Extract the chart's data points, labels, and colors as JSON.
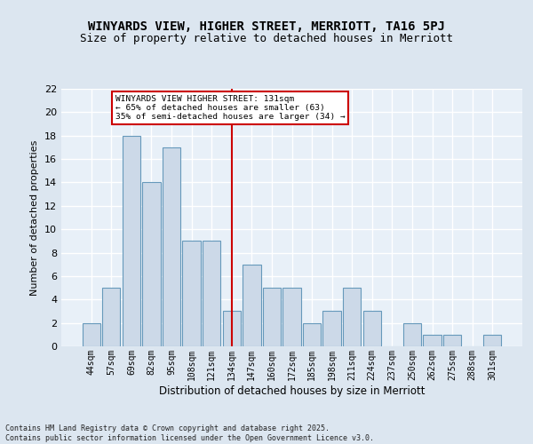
{
  "title": "WINYARDS VIEW, HIGHER STREET, MERRIOTT, TA16 5PJ",
  "subtitle": "Size of property relative to detached houses in Merriott",
  "xlabel": "Distribution of detached houses by size in Merriott",
  "ylabel": "Number of detached properties",
  "categories": [
    "44sqm",
    "57sqm",
    "69sqm",
    "82sqm",
    "95sqm",
    "108sqm",
    "121sqm",
    "134sqm",
    "147sqm",
    "160sqm",
    "172sqm",
    "185sqm",
    "198sqm",
    "211sqm",
    "224sqm",
    "237sqm",
    "250sqm",
    "262sqm",
    "275sqm",
    "288sqm",
    "301sqm"
  ],
  "values": [
    2,
    5,
    18,
    14,
    17,
    9,
    9,
    3,
    7,
    5,
    5,
    2,
    3,
    5,
    3,
    0,
    2,
    1,
    1,
    0,
    1
  ],
  "bar_color": "#ccd9e8",
  "bar_edge_color": "#6699bb",
  "vline_x": 7.0,
  "vline_color": "#cc0000",
  "annotation_text": "WINYARDS VIEW HIGHER STREET: 131sqm\n← 65% of detached houses are smaller (63)\n35% of semi-detached houses are larger (34) →",
  "annotation_box_color": "#ffffff",
  "annotation_box_edge_color": "#cc0000",
  "ylim": [
    0,
    22
  ],
  "yticks": [
    0,
    2,
    4,
    6,
    8,
    10,
    12,
    14,
    16,
    18,
    20,
    22
  ],
  "background_color": "#dce6f0",
  "plot_background_color": "#e8f0f8",
  "grid_color": "#ffffff",
  "title_fontsize": 10,
  "subtitle_fontsize": 9,
  "tick_fontsize": 7,
  "ylabel_fontsize": 8,
  "xlabel_fontsize": 8.5,
  "footer_text": "Contains HM Land Registry data © Crown copyright and database right 2025.\nContains public sector information licensed under the Open Government Licence v3.0."
}
